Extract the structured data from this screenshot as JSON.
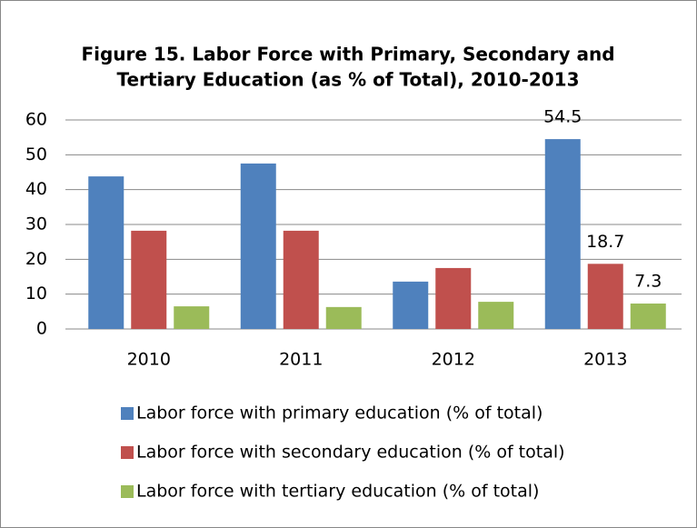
{
  "chart_data": {
    "type": "bar",
    "title": "Figure 15. Labor Force with Primary, Secondary and",
    "subtitle": "Tertiary Education (as % of Total), 2010-2013",
    "categories": [
      "2010",
      "2011",
      "2012",
      "2013"
    ],
    "series": [
      {
        "name": "Labor force with primary education (% of total)",
        "color": "#4f81bd",
        "values": [
          43.8,
          47.5,
          13.6,
          54.5
        ],
        "show_labels": [
          false,
          false,
          false,
          true
        ]
      },
      {
        "name": "Labor force with secondary education (% of total)",
        "color": "#c0504d",
        "values": [
          28.2,
          28.2,
          17.5,
          18.7
        ],
        "show_labels": [
          false,
          false,
          false,
          true
        ]
      },
      {
        "name": "Labor force with tertiary education (% of total)",
        "color": "#9bbb59",
        "values": [
          6.5,
          6.3,
          7.8,
          7.3
        ],
        "show_labels": [
          false,
          false,
          false,
          true
        ]
      }
    ],
    "ylim": [
      0,
      60
    ],
    "yticks": [
      0,
      10,
      20,
      30,
      40,
      50,
      60
    ],
    "grid": true,
    "legend": "bottom"
  }
}
